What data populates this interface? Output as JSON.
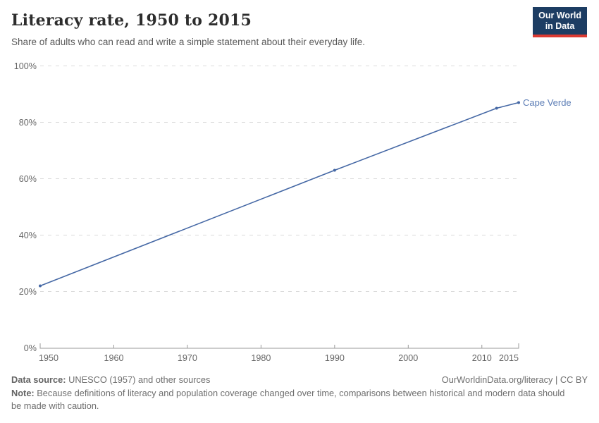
{
  "header": {
    "title": "Literacy rate, 1950 to 2015",
    "subtitle": "Share of adults who can read and write a simple statement about their everyday life.",
    "logo": {
      "line1": "Our World",
      "line2": "in Data",
      "bg_color": "#1d3d63",
      "bar_color": "#dc3a32",
      "text_color": "#ffffff"
    }
  },
  "chart_data": {
    "type": "line",
    "title": "Literacy rate, 1950 to 2015",
    "xlabel": "",
    "ylabel": "",
    "xlim": [
      1950,
      2015
    ],
    "ylim": [
      0,
      100
    ],
    "x_ticks": [
      1950,
      1960,
      1970,
      1980,
      1990,
      2000,
      2010,
      2015
    ],
    "y_ticks": [
      0,
      20,
      40,
      60,
      80,
      100
    ],
    "y_tick_suffix": "%",
    "grid": "horizontal-dashed",
    "legend_position": "line-end-label",
    "series": [
      {
        "name": "Cape Verde",
        "color": "#4568a5",
        "points": [
          {
            "year": 1950,
            "value": 22
          },
          {
            "year": 1990,
            "value": 63
          },
          {
            "year": 2012,
            "value": 85
          },
          {
            "year": 2015,
            "value": 87
          }
        ]
      }
    ]
  },
  "footer": {
    "source_label": "Data source:",
    "source_text": "UNESCO (1957) and other sources",
    "link_text": "OurWorldinData.org/literacy | CC BY",
    "note_label": "Note:",
    "note_text": "Because definitions of literacy and population coverage changed over time, comparisons between historical and modern data should be made with caution."
  },
  "colors": {
    "grid": "#dadada",
    "axis": "#9a9a9a",
    "tick_label": "#666666",
    "title": "#2d2d2d",
    "subtitle": "#595959",
    "footer_text": "#6e6e6e"
  }
}
